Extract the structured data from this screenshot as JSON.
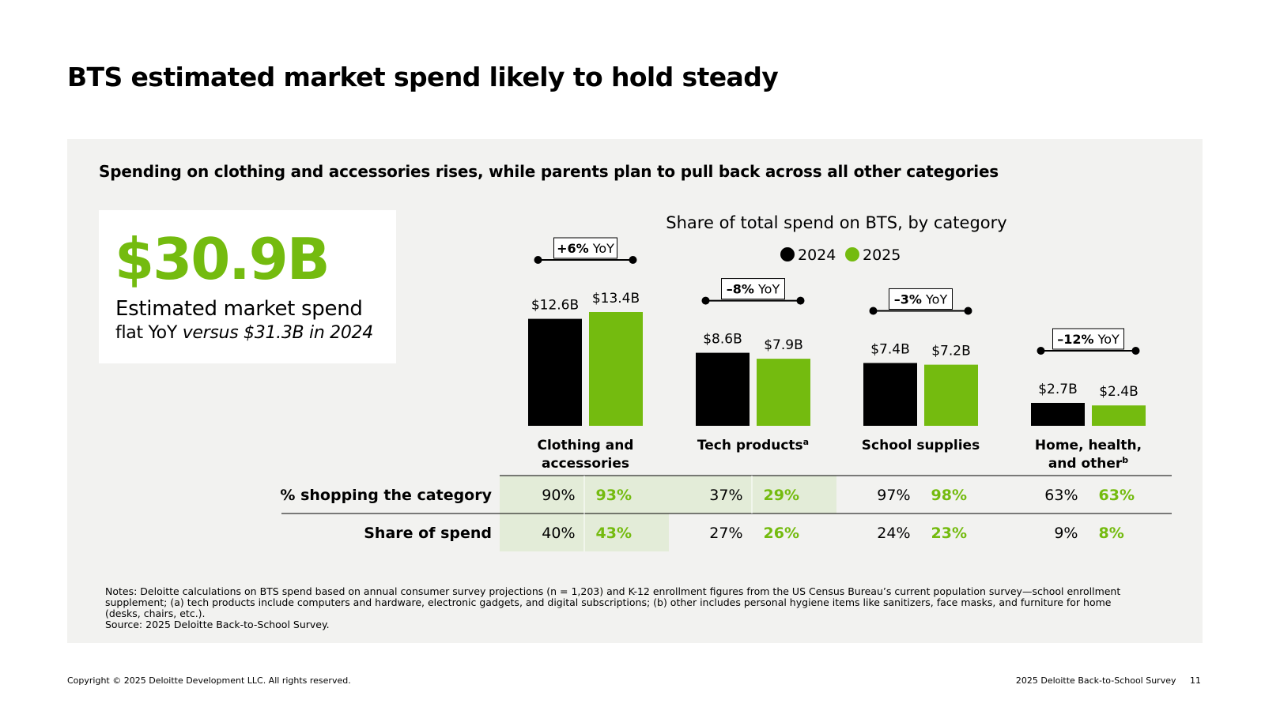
{
  "page": {
    "title": "BTS estimated market spend likely to hold steady",
    "copyright": "Copyright © 2025 Deloitte Development LLC. All rights reserved.",
    "report_name": "2025 Deloitte Back-to-School Survey",
    "page_number": "11"
  },
  "panel": {
    "subtitle": "Spending on clothing and accessories rises, while parents plan to pull back across all other categories"
  },
  "kpi": {
    "value": "$30.9B",
    "label": "Estimated market spend",
    "compare_strong": "flat YoY",
    "compare_italic": "versus $31.3B in 2024"
  },
  "colors": {
    "y2024": "#000000",
    "y2025": "#74bb0f",
    "highlight": "#e3ecd8",
    "panel": "#f2f2f0"
  },
  "chart_data": {
    "type": "bar",
    "title": "Share of total spend on BTS, by category",
    "units": "USD billions",
    "ylim": [
      0,
      13.4
    ],
    "legend_position": "top",
    "categories": [
      "Clothing and accessories",
      "Tech products",
      "School supplies",
      "Home, health, and other"
    ],
    "category_label_lines": [
      [
        "Clothing and",
        "accessories"
      ],
      [
        "Tech products"
      ],
      [
        "School supplies"
      ],
      [
        "Home, health,",
        "and other"
      ]
    ],
    "category_superscripts": [
      "",
      "a",
      "",
      "b"
    ],
    "series": [
      {
        "name": "2024",
        "values": [
          12.6,
          8.6,
          7.4,
          2.7
        ],
        "labels": [
          "$12.6B",
          "$8.6B",
          "$7.4B",
          "$2.7B"
        ]
      },
      {
        "name": "2025",
        "values": [
          13.4,
          7.9,
          7.2,
          2.4
        ],
        "labels": [
          "$13.4B",
          "$7.9B",
          "$7.2B",
          "$2.4B"
        ]
      }
    ],
    "yoy": [
      {
        "value": "+6%",
        "suffix": "YoY"
      },
      {
        "value": "–8%",
        "suffix": "YoY"
      },
      {
        "value": "–3%",
        "suffix": "YoY"
      },
      {
        "value": "–12%",
        "suffix": "YoY"
      }
    ]
  },
  "table": {
    "rows": [
      {
        "label": "% shopping the category",
        "cells": [
          [
            "90%",
            "93%"
          ],
          [
            "37%",
            "29%"
          ],
          [
            "97%",
            "98%"
          ],
          [
            "63%",
            "63%"
          ]
        ],
        "highlighted": [
          true,
          true,
          false,
          false
        ]
      },
      {
        "label": "Share of spend",
        "cells": [
          [
            "40%",
            "43%"
          ],
          [
            "27%",
            "26%"
          ],
          [
            "24%",
            "23%"
          ],
          [
            "9%",
            "8%"
          ]
        ],
        "highlighted": [
          true,
          false,
          false,
          false
        ]
      }
    ]
  },
  "notes": {
    "text": "Notes: Deloitte calculations on BTS spend based on annual consumer survey projections (n = 1,203) and K-12 enrollment figures from the US Census Bureau’s current population survey—school enrollment supplement; (a) tech products include computers and hardware, electronic gadgets, and digital subscriptions; (b) other includes personal hygiene items like sanitizers, face masks, and furniture for home (desks, chairs, etc.).",
    "source": "Source: 2025 Deloitte Back-to-School Survey."
  }
}
